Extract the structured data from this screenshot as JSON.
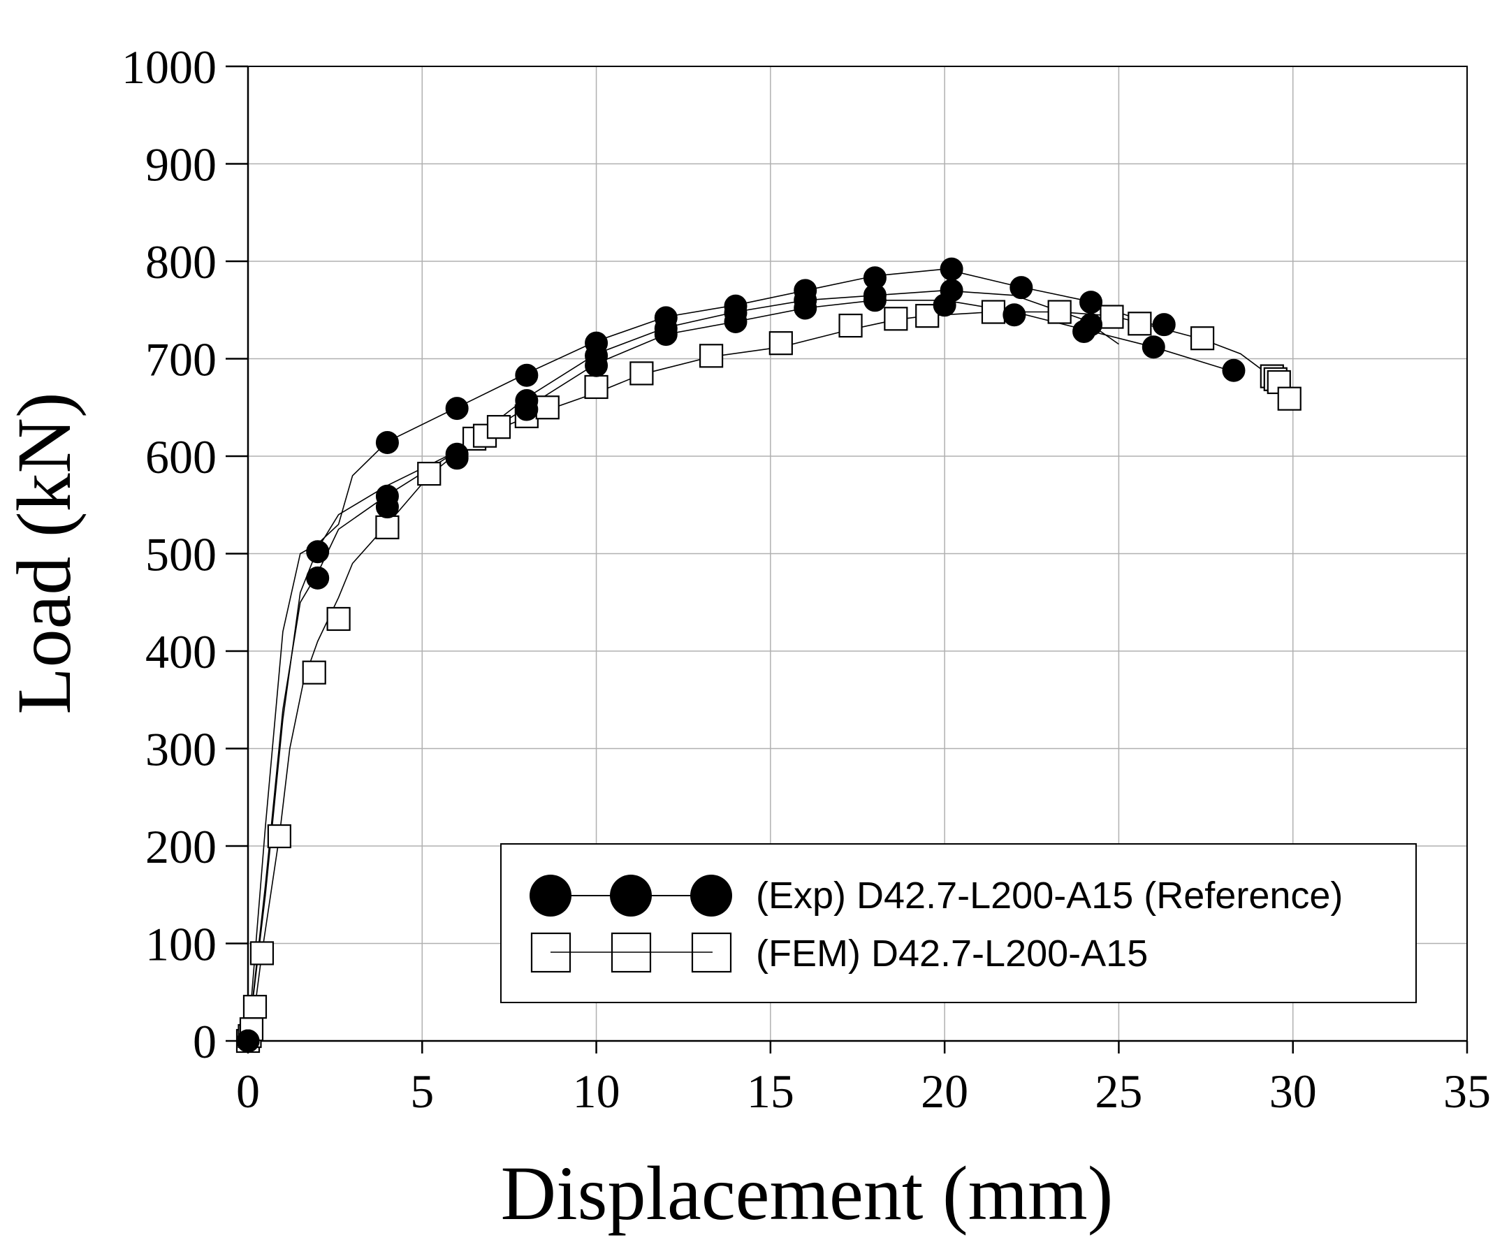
{
  "chart_data": {
    "type": "line",
    "title": "",
    "xlabel": "Displacement (mm)",
    "ylabel": "Load (kN)",
    "xlim": [
      0,
      35
    ],
    "ylim": [
      0,
      1000
    ],
    "xticks": [
      0,
      5,
      10,
      15,
      20,
      25,
      30,
      35
    ],
    "yticks": [
      0,
      100,
      200,
      300,
      400,
      500,
      600,
      700,
      800,
      900,
      1000
    ],
    "grid": true,
    "legend_position": "bottom-right",
    "series": [
      {
        "name": "(Exp) D42.7-L200-A15 (Reference)",
        "marker": "filled-circle",
        "curves": [
          {
            "line": [
              [
                0,
                0
              ],
              [
                0.5,
                150
              ],
              [
                1,
                330
              ],
              [
                1.5,
                460
              ],
              [
                2,
                505
              ],
              [
                2.6,
                540
              ],
              [
                4,
                570
              ],
              [
                6,
                605
              ],
              [
                8,
                650
              ],
              [
                10,
                695
              ],
              [
                12,
                725
              ],
              [
                14,
                738
              ],
              [
                16,
                752
              ],
              [
                18,
                760
              ],
              [
                20,
                760
              ],
              [
                22,
                748
              ],
              [
                24,
                730
              ],
              [
                26,
                712
              ],
              [
                28,
                690
              ]
            ],
            "markers": [
              [
                0,
                0
              ],
              [
                2,
                502
              ],
              [
                4,
                548
              ],
              [
                6,
                598
              ],
              [
                8,
                648
              ],
              [
                10,
                693
              ],
              [
                12,
                725
              ],
              [
                14,
                738
              ],
              [
                16,
                752
              ],
              [
                18,
                760
              ],
              [
                20,
                755
              ],
              [
                22,
                745
              ],
              [
                24,
                728
              ],
              [
                26,
                712
              ],
              [
                28.3,
                688
              ]
            ]
          },
          {
            "line": [
              [
                0,
                0
              ],
              [
                0.5,
                220
              ],
              [
                1,
                420
              ],
              [
                1.5,
                500
              ],
              [
                2,
                510
              ],
              [
                2.6,
                530
              ],
              [
                3,
                580
              ],
              [
                4,
                615
              ],
              [
                6,
                650
              ],
              [
                8,
                685
              ],
              [
                10,
                718
              ],
              [
                12,
                743
              ],
              [
                14,
                755
              ],
              [
                16,
                770
              ],
              [
                18,
                785
              ],
              [
                20,
                792
              ],
              [
                22,
                775
              ],
              [
                24,
                760
              ],
              [
                26,
                735
              ]
            ],
            "markers": [
              [
                0,
                0
              ],
              [
                2,
                475
              ],
              [
                4,
                614
              ],
              [
                6,
                649
              ],
              [
                8,
                683
              ],
              [
                10,
                716
              ],
              [
                12,
                742
              ],
              [
                14,
                754
              ],
              [
                16,
                770
              ],
              [
                18,
                783
              ],
              [
                20.2,
                792
              ],
              [
                22.2,
                773
              ],
              [
                24.2,
                758
              ],
              [
                26.3,
                735
              ]
            ]
          },
          {
            "line": [
              [
                0,
                0
              ],
              [
                0.5,
                160
              ],
              [
                1,
                340
              ],
              [
                1.5,
                450
              ],
              [
                2,
                480
              ],
              [
                2.6,
                525
              ],
              [
                4,
                560
              ],
              [
                6,
                605
              ],
              [
                8,
                660
              ],
              [
                10,
                705
              ],
              [
                12,
                732
              ],
              [
                14,
                748
              ],
              [
                16,
                760
              ],
              [
                18,
                765
              ],
              [
                20,
                770
              ],
              [
                22,
                765
              ],
              [
                24,
                740
              ],
              [
                25,
                715
              ]
            ],
            "markers": [
              [
                0,
                0
              ],
              [
                4,
                559
              ],
              [
                6,
                602
              ],
              [
                8,
                657
              ],
              [
                10,
                703
              ],
              [
                12,
                731
              ],
              [
                14,
                747
              ],
              [
                16,
                760
              ],
              [
                18,
                765
              ],
              [
                20.2,
                770
              ],
              [
                24.2,
                735
              ]
            ]
          }
        ]
      },
      {
        "name": "(FEM) D42.7-L200-A15",
        "marker": "open-square",
        "curves": [
          {
            "line": [
              [
                0,
                0
              ],
              [
                0.05,
                5
              ],
              [
                0.1,
                12
              ],
              [
                0.2,
                35
              ],
              [
                0.4,
                90
              ],
              [
                0.9,
                210
              ],
              [
                1.2,
                300
              ],
              [
                1.6,
                370
              ],
              [
                2,
                410
              ],
              [
                2.6,
                455
              ],
              [
                3,
                490
              ],
              [
                4,
                530
              ],
              [
                5.2,
                580
              ],
              [
                6.5,
                618
              ],
              [
                7.2,
                628
              ],
              [
                8,
                640
              ],
              [
                10,
                665
              ],
              [
                11.3,
                684
              ],
              [
                13.3,
                702
              ],
              [
                15.3,
                712
              ],
              [
                17.3,
                730
              ],
              [
                18.6,
                740
              ],
              [
                19.5,
                744
              ],
              [
                21.4,
                748
              ],
              [
                23.3,
                748
              ],
              [
                24.8,
                744
              ],
              [
                25.6,
                737
              ],
              [
                27.4,
                720
              ],
              [
                28.5,
                705
              ],
              [
                29.4,
                681
              ],
              [
                30,
                655
              ]
            ],
            "markers": [
              [
                0,
                0
              ],
              [
                0.05,
                5
              ],
              [
                0.1,
                12
              ],
              [
                0.2,
                35
              ],
              [
                0.4,
                90
              ],
              [
                0.9,
                210
              ],
              [
                1.9,
                378
              ],
              [
                2.6,
                433
              ],
              [
                4,
                527
              ],
              [
                5.2,
                582
              ],
              [
                6.5,
                618
              ],
              [
                6.8,
                621
              ],
              [
                7.2,
                630
              ],
              [
                8,
                641
              ],
              [
                8.6,
                650
              ],
              [
                10,
                671
              ],
              [
                11.3,
                685
              ],
              [
                13.3,
                703
              ],
              [
                15.3,
                716
              ],
              [
                17.3,
                734
              ],
              [
                18.6,
                741
              ],
              [
                19.5,
                744
              ],
              [
                21.4,
                748
              ],
              [
                23.3,
                748
              ],
              [
                24.8,
                743
              ],
              [
                25.6,
                736
              ],
              [
                27.4,
                721
              ],
              [
                29.4,
                682
              ],
              [
                29.5,
                679
              ],
              [
                29.6,
                676
              ],
              [
                29.9,
                659
              ]
            ]
          }
        ]
      }
    ]
  },
  "legend": {
    "exp_label": "(Exp) D42.7-L200-A15 (Reference)",
    "fem_label": "(FEM) D42.7-L200-A15"
  }
}
